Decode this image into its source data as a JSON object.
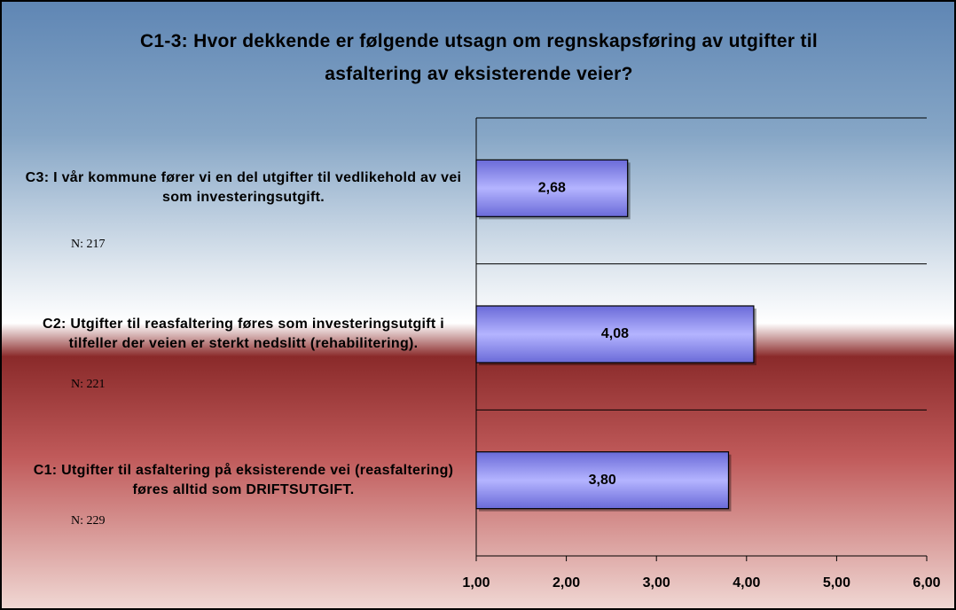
{
  "chart_data": {
    "type": "bar",
    "orientation": "horizontal",
    "title": "C1-3: Hvor dekkende er følgende utsagn om regnskapsføring av utgifter til asfaltering av eksisterende veier?",
    "categories": [
      "C3: I vår kommune fører vi en del utgifter til vedlikehold av vei som investeringsutgift.",
      "C2: Utgifter til reasfaltering føres som investeringsutgift i tilfeller der veien er sterkt nedslitt (rehabilitering).",
      "C1: Utgifter til asfaltering på eksisterende vei (reasfaltering) føres alltid som DRIFTSUTGIFT."
    ],
    "values": [
      2.68,
      4.08,
      3.8
    ],
    "value_labels": [
      "2,68",
      "4,08",
      "3,80"
    ],
    "annotations": [
      "N: 217",
      "N: 221",
      "N: 229"
    ],
    "color": "#9999ff",
    "xlim": [
      1,
      6
    ],
    "xticks": [
      {
        "value": 1,
        "label": "1,00"
      },
      {
        "value": 2,
        "label": "2,00"
      },
      {
        "value": 3,
        "label": "3,00"
      },
      {
        "value": 4,
        "label": "4,00"
      },
      {
        "value": 5,
        "label": "5,00"
      },
      {
        "value": 6,
        "label": "6,00"
      }
    ]
  }
}
